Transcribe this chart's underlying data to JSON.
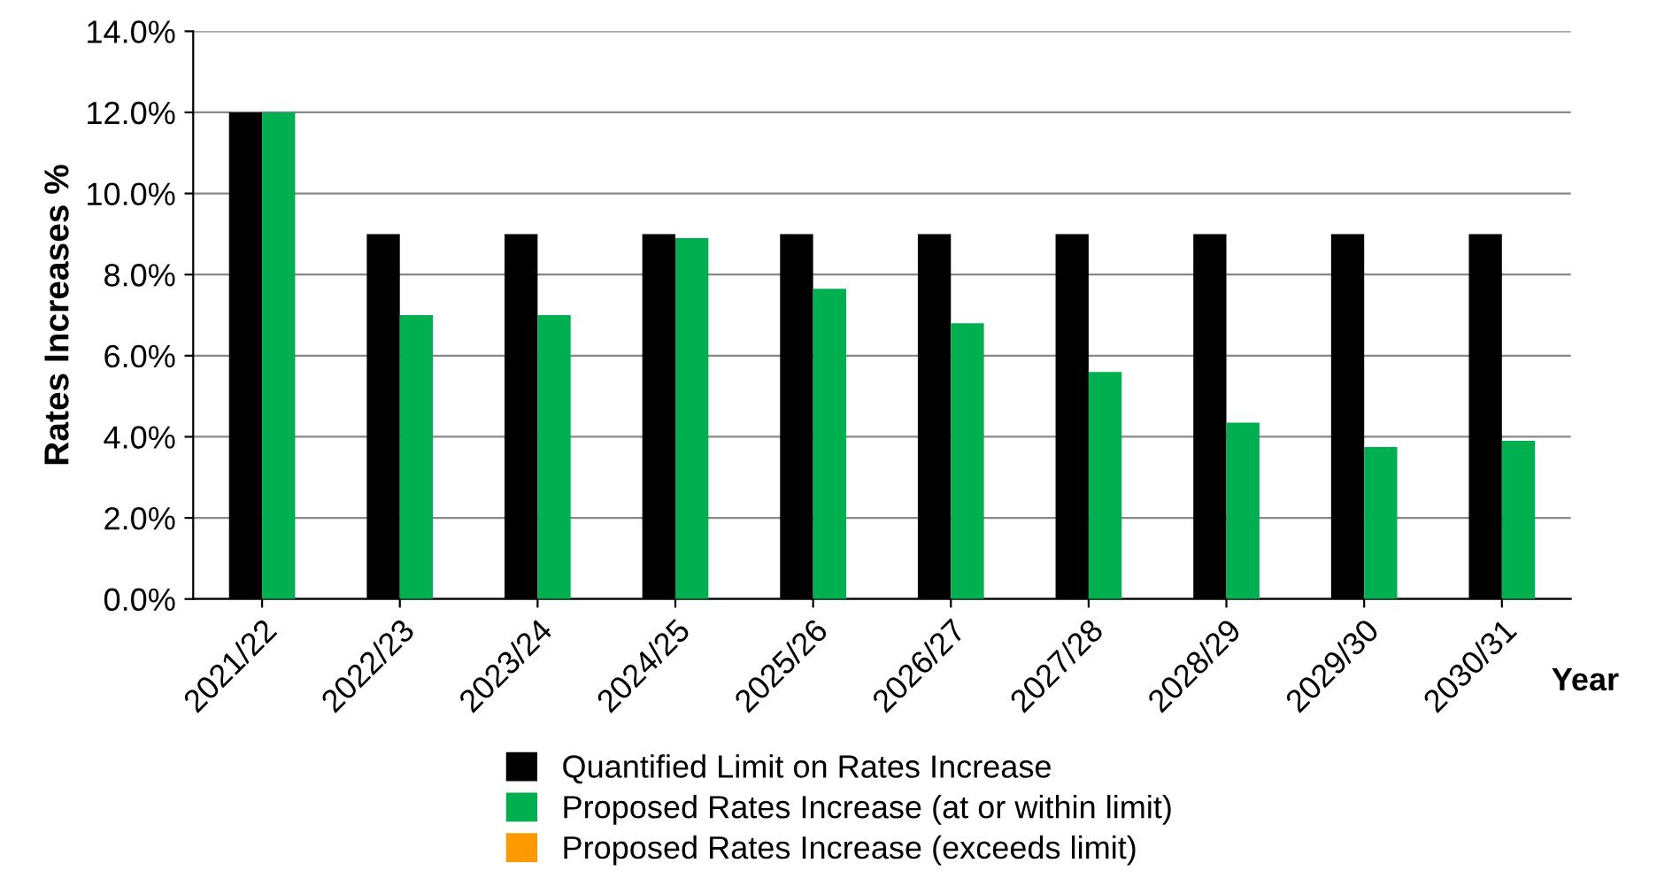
{
  "chart_data": {
    "type": "bar",
    "xlabel": "Year",
    "ylabel": "Rates Increases %",
    "categories": [
      "2021/22",
      "2022/23",
      "2023/24",
      "2024/25",
      "2025/26",
      "2026/27",
      "2027/28",
      "2028/29",
      "2029/30",
      "2030/31"
    ],
    "series": [
      {
        "name": "Quantified Limit on Rates Increase",
        "color": "#000000",
        "values": [
          12,
          9,
          9,
          9,
          9,
          9,
          9,
          9,
          9,
          9
        ]
      },
      {
        "name": "Proposed Rates Increase (at or within limit)",
        "color": "#00b050",
        "values": [
          12,
          7.0,
          7.0,
          8.9,
          7.65,
          6.8,
          5.6,
          4.35,
          3.75,
          3.9
        ]
      },
      {
        "name": "Proposed Rates Increase (exceeds limit)",
        "color": "#ff9900",
        "values": [
          null,
          null,
          null,
          null,
          null,
          null,
          null,
          null,
          null,
          null
        ]
      }
    ],
    "ylim": [
      0,
      14
    ],
    "yticks": [
      {
        "value": 0,
        "label": "0.0%"
      },
      {
        "value": 2,
        "label": "2.0%"
      },
      {
        "value": 4,
        "label": "4.0%"
      },
      {
        "value": 6,
        "label": "6.0%"
      },
      {
        "value": 8,
        "label": "8.0%"
      },
      {
        "value": 10,
        "label": "10.0%"
      },
      {
        "value": 12,
        "label": "12.0%"
      },
      {
        "value": 14,
        "label": "14.0%"
      }
    ],
    "grid": "y",
    "legend": "bottom"
  }
}
